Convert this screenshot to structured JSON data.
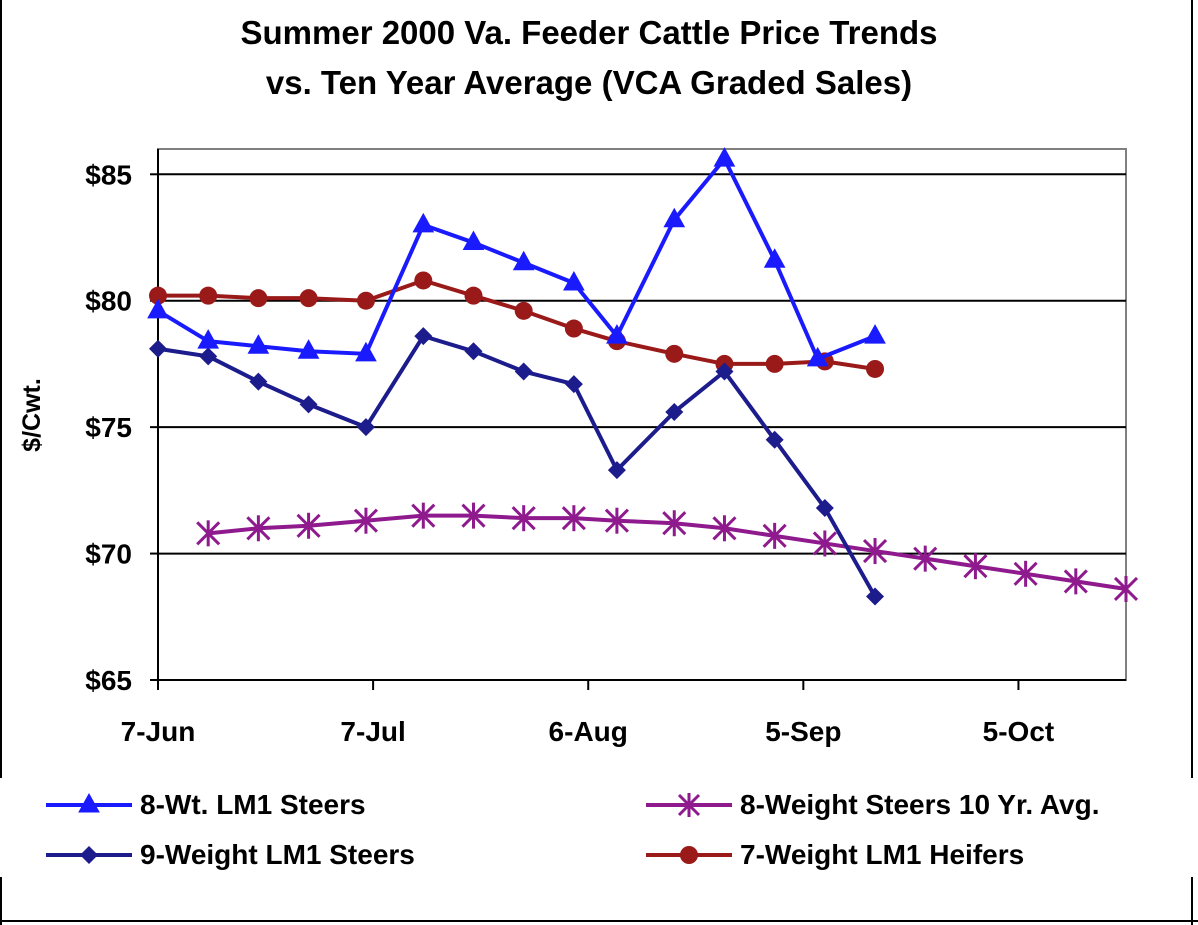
{
  "chart_data": {
    "type": "line",
    "title": "Summer 2000 Va. Feeder Cattle Price Trends",
    "subtitle": "vs. Ten Year Average (VCA Graded Sales)",
    "ylabel": "$/Cwt.",
    "xlabel": "",
    "ylim": [
      65,
      86
    ],
    "xlim": [
      "2000-06-07",
      "2000-10-20"
    ],
    "y_ticks": [
      {
        "value": 65,
        "label": "$65"
      },
      {
        "value": 70,
        "label": "$70"
      },
      {
        "value": 75,
        "label": "$75"
      },
      {
        "value": 80,
        "label": "$80"
      },
      {
        "value": 85,
        "label": "$85"
      }
    ],
    "x_ticks": [
      {
        "date": "2000-06-07",
        "label": "7-Jun"
      },
      {
        "date": "2000-07-07",
        "label": "7-Jul"
      },
      {
        "date": "2000-08-06",
        "label": "6-Aug"
      },
      {
        "date": "2000-09-05",
        "label": "5-Sep"
      },
      {
        "date": "2000-10-05",
        "label": "5-Oct"
      }
    ],
    "grid": "horizontal",
    "legend_position": "bottom",
    "series": [
      {
        "name": "8-Wt. LM1 Steers",
        "color": "#1a1aff",
        "marker": "triangle",
        "points": [
          [
            "2000-06-07",
            79.6
          ],
          [
            "2000-06-14",
            78.4
          ],
          [
            "2000-06-21",
            78.2
          ],
          [
            "2000-06-28",
            78.0
          ],
          [
            "2000-07-06",
            77.9
          ],
          [
            "2000-07-14",
            83.0
          ],
          [
            "2000-07-21",
            82.3
          ],
          [
            "2000-07-28",
            81.5
          ],
          [
            "2000-08-04",
            80.7
          ],
          [
            "2000-08-10",
            78.6
          ],
          [
            "2000-08-18",
            83.2
          ],
          [
            "2000-08-25",
            85.6
          ],
          [
            "2000-09-01",
            81.6
          ],
          [
            "2000-09-07",
            77.7
          ],
          [
            "2000-09-15",
            78.6
          ]
        ]
      },
      {
        "name": "9-Weight LM1 Steers",
        "color": "#1c1c8c",
        "marker": "diamond",
        "points": [
          [
            "2000-06-07",
            78.1
          ],
          [
            "2000-06-14",
            77.8
          ],
          [
            "2000-06-21",
            76.8
          ],
          [
            "2000-06-28",
            75.9
          ],
          [
            "2000-07-06",
            75.0
          ],
          [
            "2000-07-14",
            78.6
          ],
          [
            "2000-07-21",
            78.0
          ],
          [
            "2000-07-28",
            77.2
          ],
          [
            "2000-08-04",
            76.7
          ],
          [
            "2000-08-10",
            73.3
          ],
          [
            "2000-08-18",
            75.6
          ],
          [
            "2000-08-25",
            77.2
          ],
          [
            "2000-09-01",
            74.5
          ],
          [
            "2000-09-08",
            71.8
          ],
          [
            "2000-09-15",
            68.3
          ]
        ]
      },
      {
        "name": "8-Weight Steers 10 Yr. Avg.",
        "color": "#8e1a8e",
        "marker": "asterisk",
        "points": [
          [
            "2000-06-14",
            70.8
          ],
          [
            "2000-06-21",
            71.0
          ],
          [
            "2000-06-28",
            71.1
          ],
          [
            "2000-07-06",
            71.3
          ],
          [
            "2000-07-14",
            71.5
          ],
          [
            "2000-07-21",
            71.5
          ],
          [
            "2000-07-28",
            71.4
          ],
          [
            "2000-08-04",
            71.4
          ],
          [
            "2000-08-10",
            71.3
          ],
          [
            "2000-08-18",
            71.2
          ],
          [
            "2000-08-25",
            71.0
          ],
          [
            "2000-09-01",
            70.7
          ],
          [
            "2000-09-08",
            70.4
          ],
          [
            "2000-09-15",
            70.1
          ],
          [
            "2000-09-22",
            69.8
          ],
          [
            "2000-09-29",
            69.5
          ],
          [
            "2000-10-06",
            69.2
          ],
          [
            "2000-10-13",
            68.9
          ],
          [
            "2000-10-20",
            68.6
          ]
        ]
      },
      {
        "name": "7-Weight LM1 Heifers",
        "color": "#9a1a1a",
        "marker": "circle",
        "points": [
          [
            "2000-06-07",
            80.2
          ],
          [
            "2000-06-14",
            80.2
          ],
          [
            "2000-06-21",
            80.1
          ],
          [
            "2000-06-28",
            80.1
          ],
          [
            "2000-07-06",
            80.0
          ],
          [
            "2000-07-14",
            80.8
          ],
          [
            "2000-07-21",
            80.2
          ],
          [
            "2000-07-28",
            79.6
          ],
          [
            "2000-08-04",
            78.9
          ],
          [
            "2000-08-10",
            78.4
          ],
          [
            "2000-08-18",
            77.9
          ],
          [
            "2000-08-25",
            77.5
          ],
          [
            "2000-09-01",
            77.5
          ],
          [
            "2000-09-08",
            77.6
          ],
          [
            "2000-09-15",
            77.3
          ]
        ]
      }
    ]
  }
}
